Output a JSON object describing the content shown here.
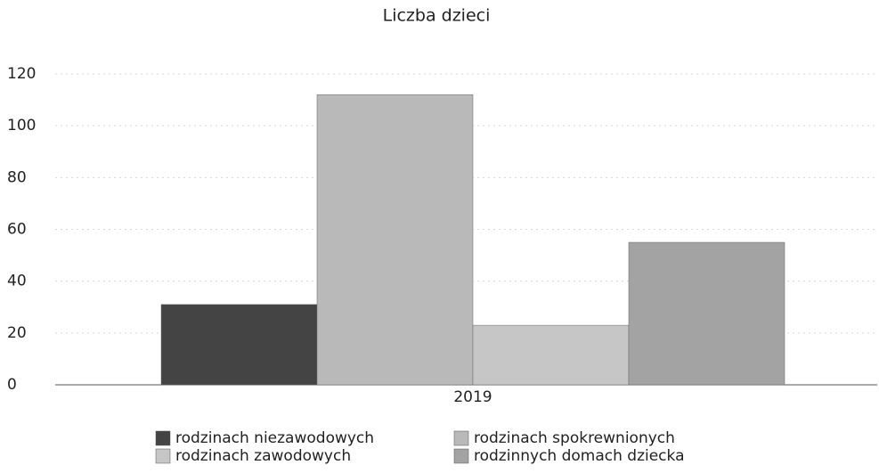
{
  "chart_data": {
    "type": "bar",
    "title": "Liczba dzieci",
    "categories": [
      "2019"
    ],
    "series": [
      {
        "name": "rodzinach niezawodowych",
        "color": "#444444",
        "values": [
          31
        ]
      },
      {
        "name": "rodzinach spokrewnionych",
        "color": "#b9b9b9",
        "values": [
          112
        ]
      },
      {
        "name": "rodzinach zawodowych",
        "color": "#c6c6c6",
        "values": [
          23
        ]
      },
      {
        "name": "rodzinnych domach dziecka",
        "color": "#a3a3a3",
        "values": [
          55
        ]
      }
    ],
    "ylim": [
      0,
      120
    ],
    "yticks": [
      0,
      20,
      40,
      60,
      80,
      100,
      120
    ],
    "grid": true,
    "legend": "bottom"
  }
}
